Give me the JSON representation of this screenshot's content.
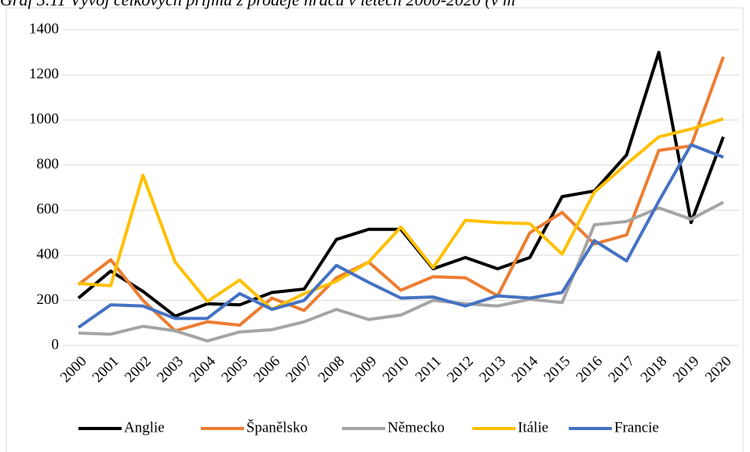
{
  "chart_data": {
    "type": "line",
    "title": "Graf 3.11 Vývoj celkových příjmů z prodeje hráčů v letech 2000-2020 (v m",
    "categories": [
      "2000",
      "2001",
      "2002",
      "2003",
      "2004",
      "2005",
      "2006",
      "2007",
      "2008",
      "2009",
      "2010",
      "2011",
      "2012",
      "2013",
      "2014",
      "2015",
      "2016",
      "2017",
      "2018",
      "2019",
      "2020"
    ],
    "series": [
      {
        "name": "Anglie",
        "color": "#000000",
        "values": [
          210,
          330,
          240,
          130,
          185,
          180,
          235,
          250,
          470,
          515,
          515,
          340,
          390,
          340,
          390,
          660,
          685,
          845,
          1300,
          545,
          925
        ]
      },
      {
        "name": "Španělsko",
        "color": "#ed7d31",
        "values": [
          270,
          380,
          200,
          65,
          105,
          90,
          210,
          155,
          300,
          370,
          245,
          305,
          300,
          220,
          500,
          590,
          450,
          490,
          865,
          885,
          1280
        ]
      },
      {
        "name": "Německo",
        "color": "#a5a5a5",
        "values": [
          55,
          50,
          85,
          65,
          20,
          60,
          70,
          105,
          160,
          115,
          135,
          200,
          185,
          175,
          205,
          190,
          535,
          550,
          610,
          560,
          635
        ]
      },
      {
        "name": "Itálie",
        "color": "#ffc000",
        "values": [
          275,
          265,
          755,
          370,
          195,
          290,
          160,
          230,
          285,
          370,
          525,
          345,
          555,
          545,
          540,
          405,
          680,
          805,
          925,
          960,
          1005
        ]
      },
      {
        "name": "Francie",
        "color": "#4472c4",
        "values": [
          80,
          180,
          175,
          120,
          120,
          230,
          160,
          200,
          355,
          280,
          210,
          215,
          175,
          220,
          210,
          235,
          465,
          375,
          640,
          890,
          835
        ]
      }
    ],
    "ylim": [
      0,
      1400
    ],
    "yticks": [
      0,
      200,
      400,
      600,
      800,
      1000,
      1200,
      1400
    ],
    "grid": true,
    "legend": "bottom"
  }
}
